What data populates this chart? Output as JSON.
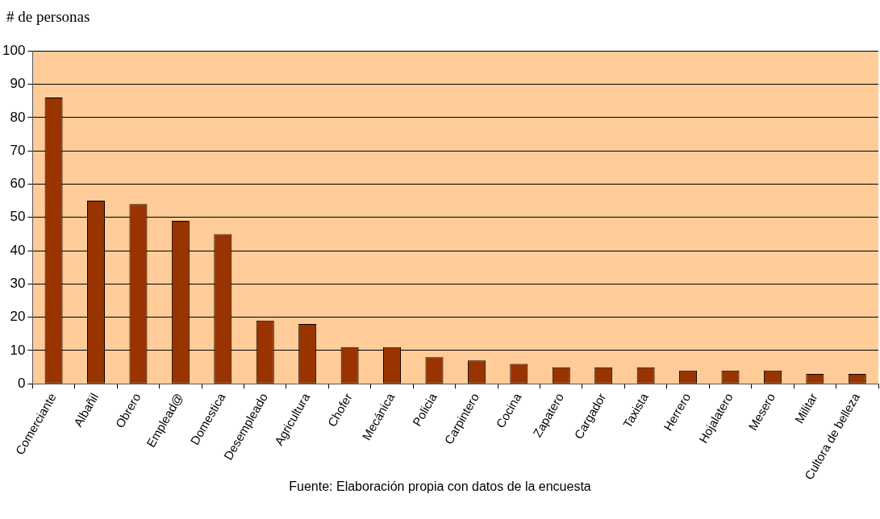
{
  "chart_data": {
    "type": "bar",
    "ylabel": "# de personas",
    "categories": [
      "Comerciante",
      "Albañil",
      "Obrero",
      "Emplead@",
      "Domestica",
      "Desempleado",
      "Agricultura",
      "Chofer",
      "Mecánica",
      "Policia",
      "Carpintero",
      "Cocina",
      "Zapatero",
      "Cargador",
      "Taxista",
      "Herrero",
      "Hojalatero",
      "Mesero",
      "Militar",
      "Cultora de belleza"
    ],
    "values": [
      86,
      55,
      54,
      49,
      45,
      19,
      18,
      11,
      11,
      8,
      7,
      6,
      5,
      5,
      5,
      4,
      4,
      4,
      3,
      3
    ],
    "color": "#993300",
    "ylim": [
      0,
      100
    ],
    "yticks": [
      0,
      10,
      20,
      30,
      40,
      50,
      60,
      70,
      80,
      90,
      100
    ],
    "grid": "y",
    "annotations": [
      "Fuente: Elaboración propia con datos de la encuesta"
    ]
  }
}
